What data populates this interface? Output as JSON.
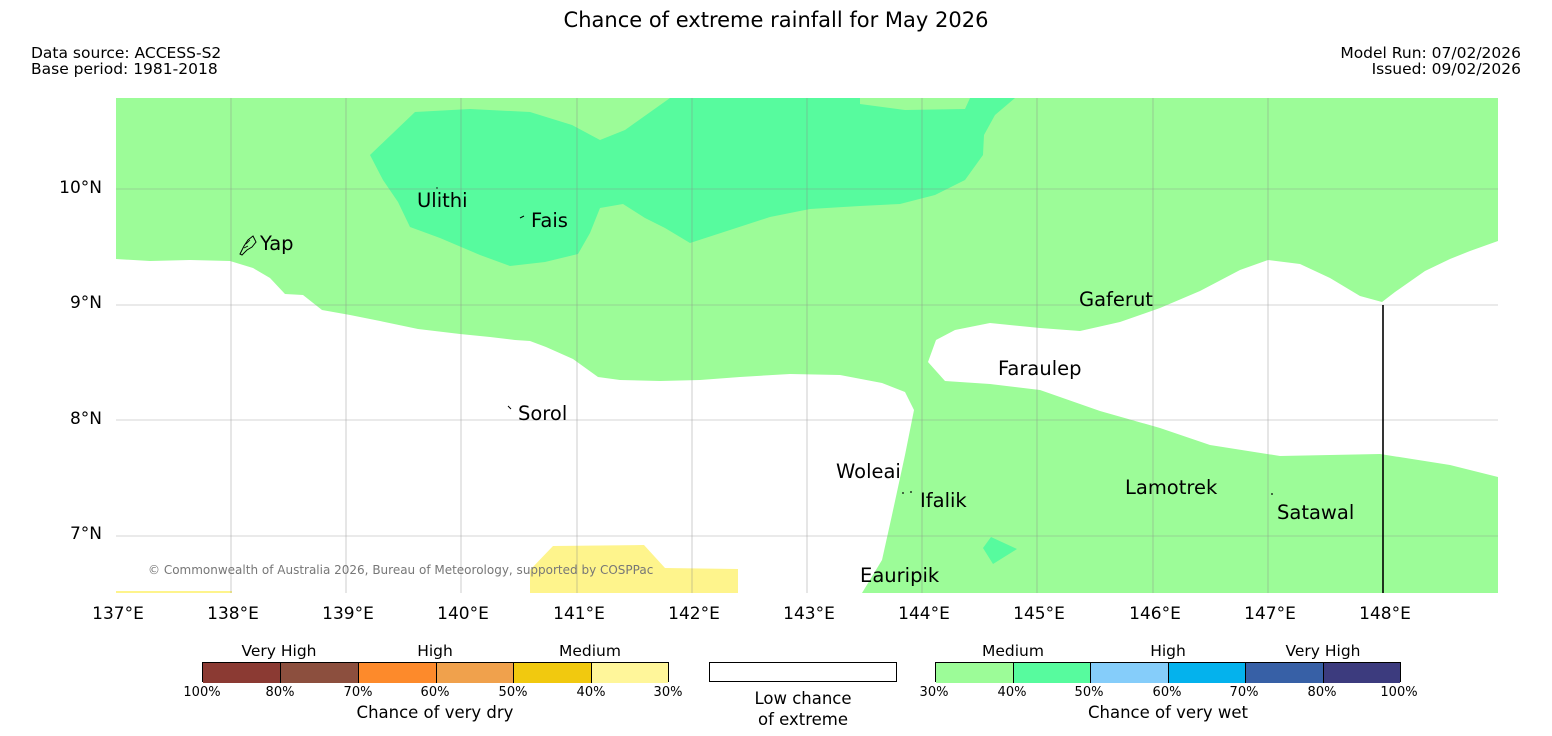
{
  "header": {
    "title": "Chance of extreme rainfall for May 2026",
    "data_source": "Data source: ACCESS-S2",
    "base_period": "Base period: 1981-2018",
    "model_run": "Model Run: 07/02/2026",
    "issued": "Issued: 09/02/2026"
  },
  "map": {
    "lat_labels": [
      "10°N",
      "9°N",
      "8°N",
      "7°N"
    ],
    "lon_labels": [
      "137°E",
      "138°E",
      "139°E",
      "140°E",
      "141°E",
      "142°E",
      "143°E",
      "144°E",
      "145°E",
      "146°E",
      "147°E",
      "148°E"
    ],
    "places": [
      "Yap",
      "Ulithi",
      "Fais",
      "Gaferut",
      "Faraulep",
      "Sorol",
      "Woleai",
      "Ifalik",
      "Lamotrek",
      "Satawal",
      "Eauripik"
    ],
    "copyright": "© Commonwealth of Australia 2026, Bureau of Meteorology, supported by COSPPac",
    "colors": {
      "wet_medium_30_40": "#9cfc98",
      "wet_medium_40_50": "#57fb9e",
      "dry_medium_30_40": "#fef48c",
      "low_chance": "#ffffff"
    }
  },
  "legend": {
    "dry": {
      "categories": [
        "Very High",
        "High",
        "Medium"
      ],
      "ticks": [
        "100%",
        "80%",
        "70%",
        "60%",
        "50%",
        "40%",
        "30%"
      ],
      "title": "Chance of very dry",
      "colors": [
        "#8b3a33",
        "#8c4f3e",
        "#fd8a2b",
        "#f0a14c",
        "#f1c90f",
        "#fff69a"
      ]
    },
    "low": {
      "line1": "Low chance",
      "line2": "of extreme"
    },
    "wet": {
      "categories": [
        "Medium",
        "High",
        "Very High"
      ],
      "ticks": [
        "30%",
        "40%",
        "50%",
        "60%",
        "70%",
        "80%",
        "100%"
      ],
      "title": "Chance of very wet",
      "colors": [
        "#9cfc98",
        "#57fb9e",
        "#85cdfa",
        "#04b2ed",
        "#3760a6",
        "#3c3b7e"
      ]
    }
  }
}
